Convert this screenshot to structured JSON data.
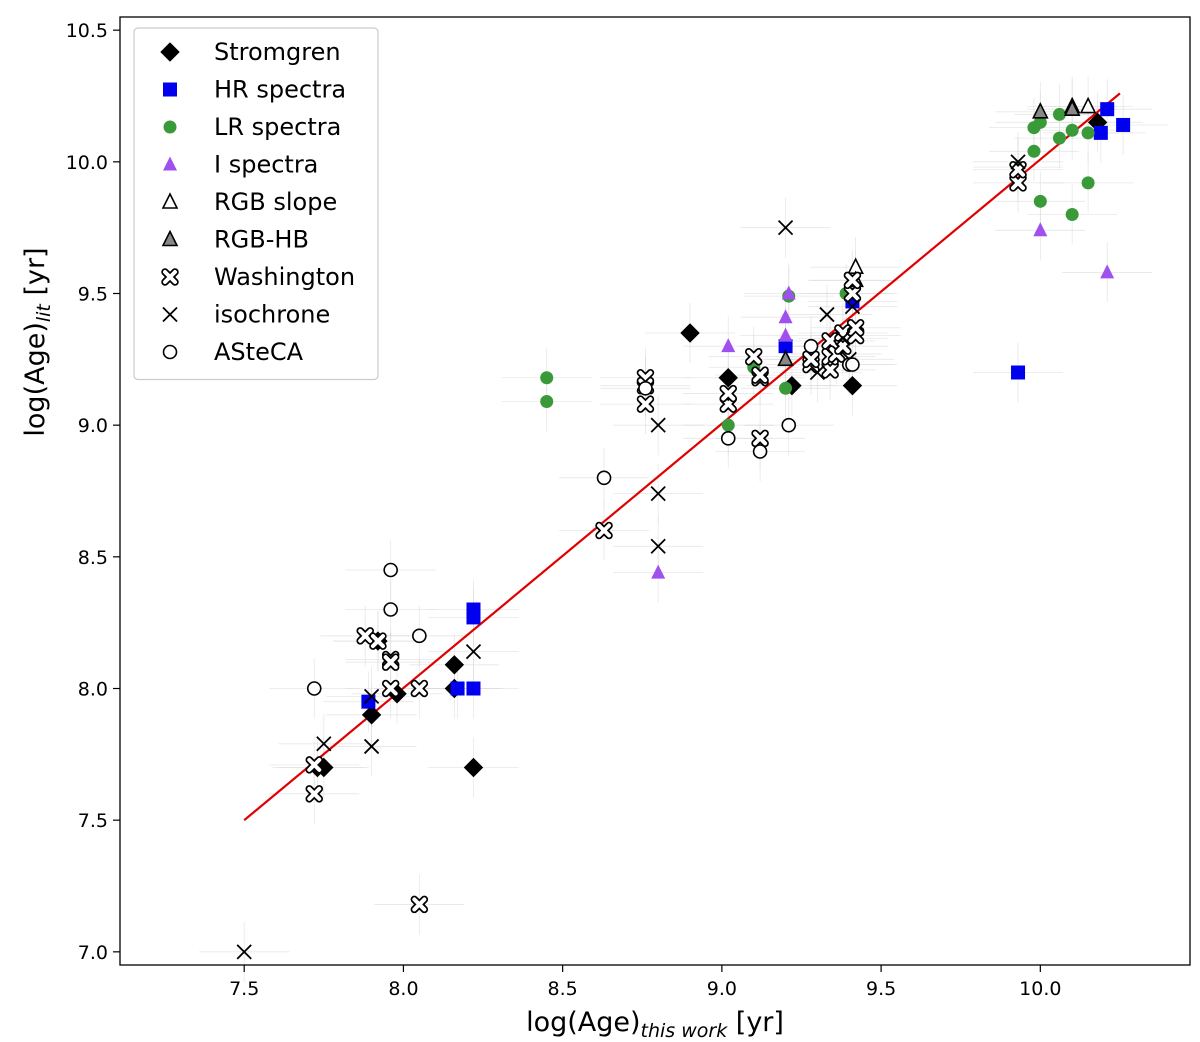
{
  "chart_data": {
    "type": "scatter",
    "xlabel": {
      "pre": "log(Age)",
      "sub": "this work",
      "post": " [yr]"
    },
    "ylabel": {
      "pre": "log(Age)",
      "sub": "lit",
      "post": " [yr]"
    },
    "xlim": [
      7.11,
      10.47
    ],
    "ylim": [
      6.95,
      10.55
    ],
    "xticks": [
      7.5,
      8.0,
      8.5,
      9.0,
      9.5,
      10.0
    ],
    "yticks": [
      7.0,
      7.5,
      8.0,
      8.5,
      9.0,
      9.5,
      10.0,
      10.5
    ],
    "xtick_labels": [
      "7.5",
      "8.0",
      "8.5",
      "9.0",
      "9.5",
      "10.0"
    ],
    "ytick_labels": [
      "7.0",
      "7.5",
      "8.0",
      "8.5",
      "9.0",
      "9.5",
      "10.0",
      "10.5"
    ],
    "legend_position": "upper-left",
    "fit_line": {
      "color": "#e00000",
      "x": [
        7.5,
        10.25
      ],
      "y": [
        7.5,
        10.26
      ]
    },
    "series": [
      {
        "name": "Stromgren",
        "marker": "diamond",
        "color": "#000000",
        "points": [
          [
            7.73,
            7.7
          ],
          [
            7.75,
            7.7
          ],
          [
            7.9,
            7.9
          ],
          [
            7.92,
            8.18
          ],
          [
            7.98,
            7.98
          ],
          [
            8.16,
            8.09
          ],
          [
            8.16,
            8.0
          ],
          [
            8.22,
            7.7
          ],
          [
            8.9,
            9.35
          ],
          [
            9.02,
            9.18
          ],
          [
            9.22,
            9.15
          ],
          [
            9.41,
            9.15
          ],
          [
            10.18,
            10.15
          ]
        ]
      },
      {
        "name": "HR spectra",
        "marker": "square",
        "color": "#0000ee",
        "points": [
          [
            7.89,
            7.95
          ],
          [
            8.17,
            8.0
          ],
          [
            8.22,
            8.0
          ],
          [
            8.22,
            8.27
          ],
          [
            8.22,
            8.3
          ],
          [
            9.2,
            9.3
          ],
          [
            9.41,
            9.47
          ],
          [
            9.93,
            9.2
          ],
          [
            10.19,
            10.11
          ],
          [
            10.21,
            10.2
          ],
          [
            10.26,
            10.14
          ]
        ]
      },
      {
        "name": "LR spectra",
        "marker": "circle-fill",
        "color": "#3a9a3a",
        "points": [
          [
            8.45,
            9.18
          ],
          [
            8.45,
            9.09
          ],
          [
            9.02,
            9.0
          ],
          [
            9.1,
            9.22
          ],
          [
            9.2,
            9.14
          ],
          [
            9.21,
            9.49
          ],
          [
            9.39,
            9.5
          ],
          [
            9.93,
            9.98
          ],
          [
            9.98,
            10.04
          ],
          [
            9.98,
            10.13
          ],
          [
            10.0,
            9.85
          ],
          [
            10.0,
            10.15
          ],
          [
            10.06,
            10.09
          ],
          [
            10.06,
            10.18
          ],
          [
            10.1,
            9.8
          ],
          [
            10.1,
            10.12
          ],
          [
            10.15,
            9.92
          ],
          [
            10.15,
            10.11
          ]
        ]
      },
      {
        "name": "I spectra",
        "marker": "triangle-fill",
        "color": "#a050ee",
        "points": [
          [
            8.8,
            8.44
          ],
          [
            9.02,
            9.3
          ],
          [
            9.2,
            9.34
          ],
          [
            9.2,
            9.41
          ],
          [
            9.21,
            9.5
          ],
          [
            10.0,
            9.74
          ],
          [
            10.21,
            9.58
          ]
        ]
      },
      {
        "name": "RGB slope",
        "marker": "triangle-open",
        "color": "#000000",
        "points": [
          [
            9.42,
            9.6
          ],
          [
            9.42,
            9.55
          ],
          [
            10.1,
            10.21
          ],
          [
            10.15,
            10.21
          ]
        ]
      },
      {
        "name": "RGB-HB",
        "marker": "triangle-gray",
        "color": "#000000",
        "points": [
          [
            9.2,
            9.25
          ],
          [
            10.0,
            10.19
          ],
          [
            10.1,
            10.2
          ]
        ]
      },
      {
        "name": "Washington",
        "marker": "washington",
        "color": "#000000",
        "points": [
          [
            7.72,
            7.6
          ],
          [
            7.72,
            7.71
          ],
          [
            7.88,
            8.2
          ],
          [
            7.92,
            8.18
          ],
          [
            7.96,
            8.11
          ],
          [
            7.96,
            8.1
          ],
          [
            7.96,
            8.0
          ],
          [
            8.05,
            8.0
          ],
          [
            8.05,
            7.18
          ],
          [
            8.63,
            8.6
          ],
          [
            8.76,
            9.18
          ],
          [
            8.76,
            9.15
          ],
          [
            8.76,
            9.08
          ],
          [
            9.02,
            9.08
          ],
          [
            9.02,
            9.12
          ],
          [
            9.1,
            9.26
          ],
          [
            9.12,
            9.18
          ],
          [
            9.12,
            9.19
          ],
          [
            9.12,
            8.95
          ],
          [
            9.28,
            9.23
          ],
          [
            9.28,
            9.25
          ],
          [
            9.34,
            9.21
          ],
          [
            9.34,
            9.26
          ],
          [
            9.34,
            9.32
          ],
          [
            9.36,
            9.27
          ],
          [
            9.38,
            9.3
          ],
          [
            9.38,
            9.35
          ],
          [
            9.41,
            9.5
          ],
          [
            9.41,
            9.55
          ],
          [
            9.42,
            9.34
          ],
          [
            9.42,
            9.37
          ],
          [
            9.93,
            9.92
          ],
          [
            9.93,
            9.97
          ]
        ]
      },
      {
        "name": "isochrone",
        "marker": "x",
        "color": "#000000",
        "points": [
          [
            7.5,
            7.0
          ],
          [
            7.75,
            7.79
          ],
          [
            7.9,
            7.97
          ],
          [
            7.9,
            7.78
          ],
          [
            8.22,
            8.14
          ],
          [
            8.8,
            9.0
          ],
          [
            8.8,
            8.74
          ],
          [
            8.8,
            8.54
          ],
          [
            9.2,
            9.75
          ],
          [
            9.3,
            9.2
          ],
          [
            9.33,
            9.42
          ],
          [
            9.38,
            9.33
          ],
          [
            9.4,
            9.25
          ],
          [
            9.41,
            9.45
          ],
          [
            9.93,
            10.0
          ]
        ]
      },
      {
        "name": "ASteCA",
        "marker": "circle-open",
        "color": "#000000",
        "points": [
          [
            7.72,
            8.0
          ],
          [
            7.96,
            8.45
          ],
          [
            7.96,
            8.3
          ],
          [
            8.05,
            8.2
          ],
          [
            8.63,
            8.8
          ],
          [
            8.76,
            9.14
          ],
          [
            9.02,
            8.95
          ],
          [
            9.12,
            8.9
          ],
          [
            9.21,
            9.0
          ],
          [
            9.28,
            9.3
          ],
          [
            9.4,
            9.23
          ],
          [
            9.41,
            9.23
          ]
        ]
      }
    ]
  }
}
